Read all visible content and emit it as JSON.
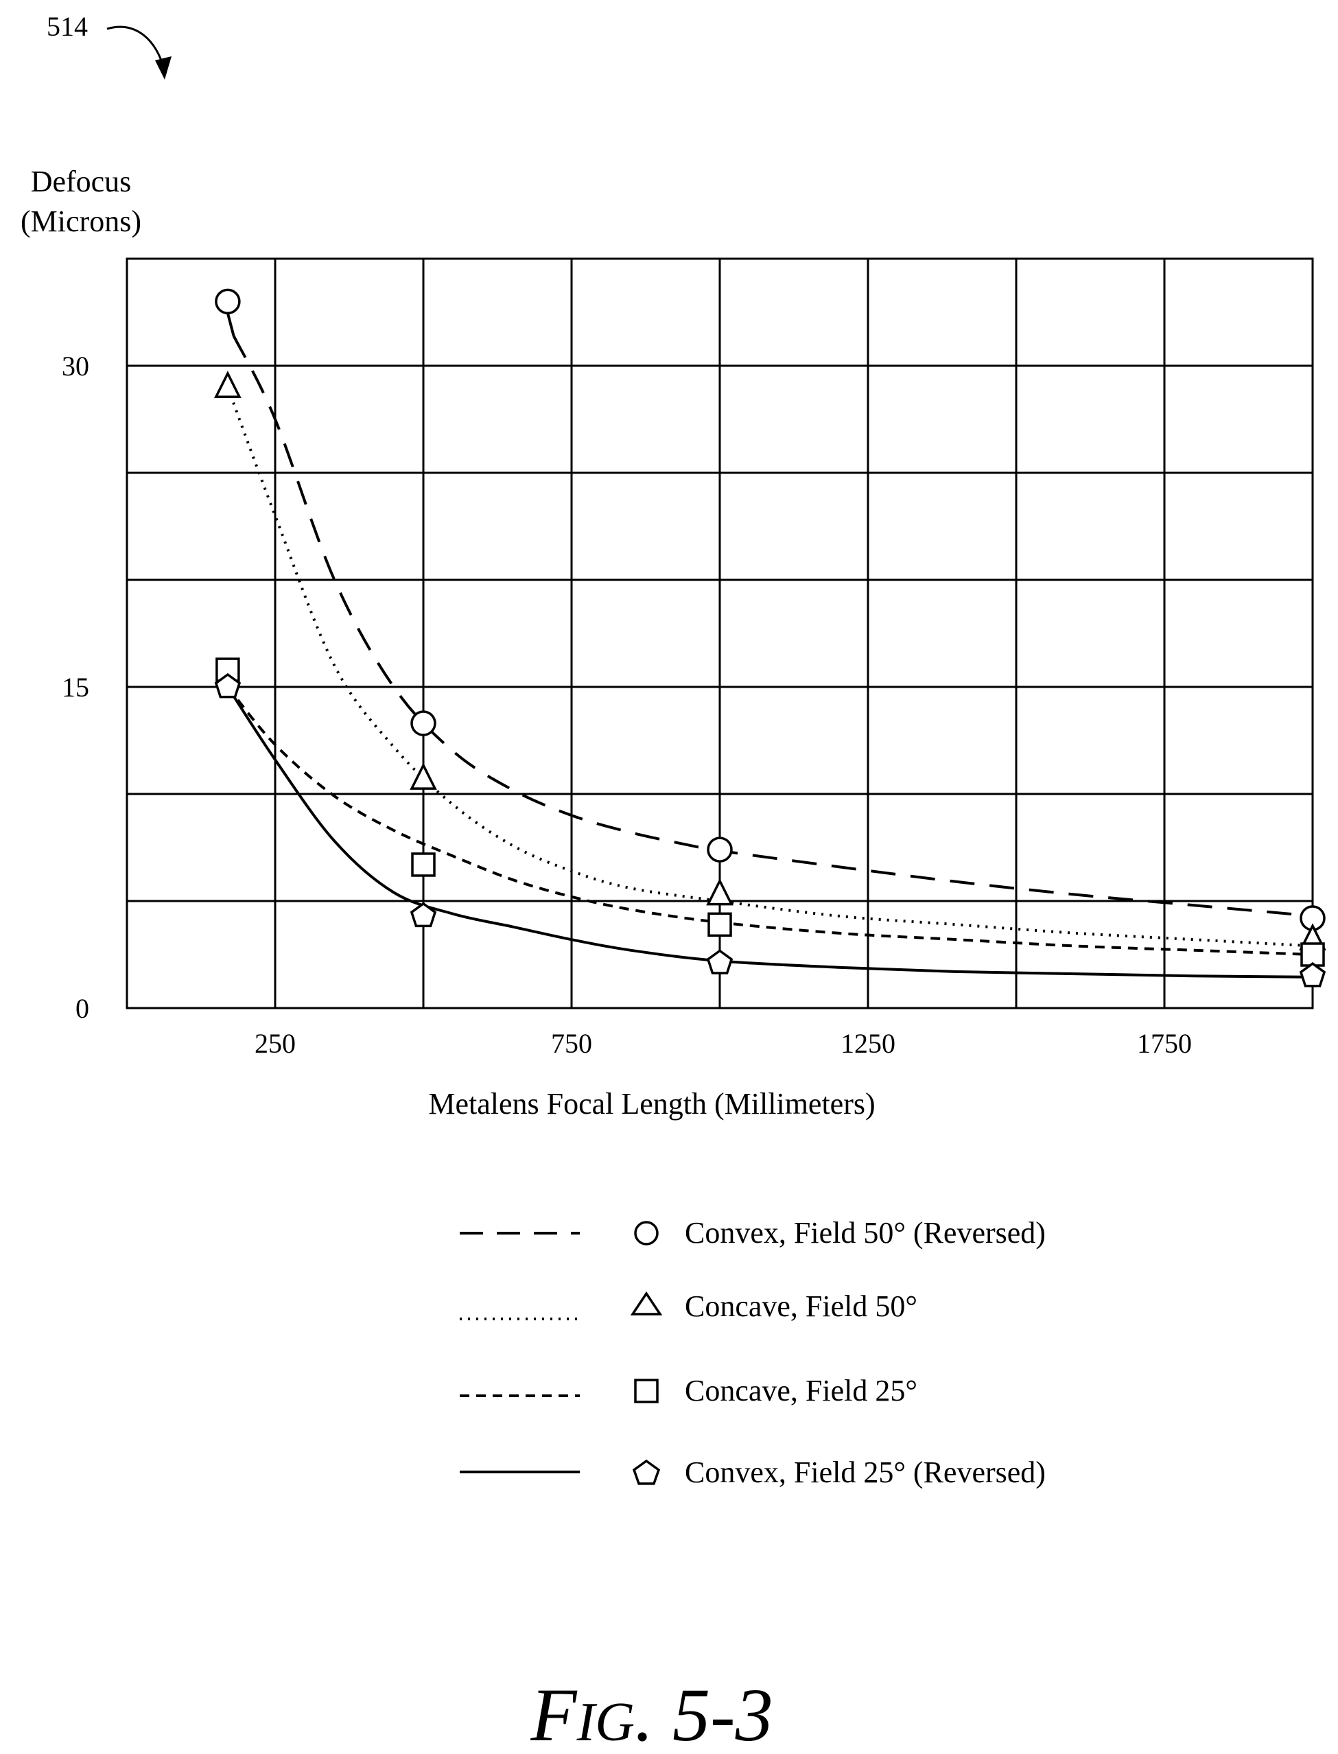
{
  "figure": {
    "ref_number": "514",
    "caption_prefix": "F",
    "caption_small": "IG",
    "caption_suffix": ". 5-3"
  },
  "chart_data": {
    "type": "line",
    "ylabel_line1": "Defocus",
    "ylabel_line2": "(Microns)",
    "xlabel": "Metalens Focal Length (Millimeters)",
    "xlim": [
      0,
      2000
    ],
    "ylim": [
      0,
      35
    ],
    "x_ticks": [
      250,
      750,
      1250,
      1750
    ],
    "x_tick_labels": [
      "250",
      "750",
      "1250",
      "1750"
    ],
    "x_grid": [
      250,
      500,
      750,
      1000,
      1250,
      1500,
      1750
    ],
    "y_ticks": [
      0,
      15,
      30
    ],
    "y_tick_labels": [
      "0",
      "15",
      "30"
    ],
    "y_grid": [
      5,
      10,
      15,
      20,
      25,
      30
    ],
    "grid": true,
    "legend_position": "bottom",
    "series": [
      {
        "name": "Convex, Field 50° (Reversed)",
        "line_style": "long-dash",
        "marker": "circle",
        "points": [
          [
            170,
            33
          ],
          [
            500,
            13.3
          ],
          [
            1000,
            7.4
          ],
          [
            2000,
            4.2
          ]
        ],
        "curve": [
          [
            180,
            31.4
          ],
          [
            250,
            27.5
          ],
          [
            350,
            20.0
          ],
          [
            450,
            15.0
          ],
          [
            550,
            12.0
          ],
          [
            650,
            10.2
          ],
          [
            750,
            9.0
          ],
          [
            850,
            8.2
          ],
          [
            950,
            7.6
          ],
          [
            1000,
            7.35
          ],
          [
            1200,
            6.6
          ],
          [
            1400,
            5.9
          ],
          [
            1600,
            5.3
          ],
          [
            1800,
            4.8
          ],
          [
            2000,
            4.3
          ]
        ]
      },
      {
        "name": "Concave, Field 50°",
        "line_style": "dotted",
        "marker": "triangle",
        "points": [
          [
            170,
            29
          ],
          [
            500,
            10.7
          ],
          [
            1000,
            5.3
          ],
          [
            2000,
            3.2
          ]
        ],
        "curve": [
          [
            170,
            29
          ],
          [
            250,
            23.0
          ],
          [
            350,
            16.0
          ],
          [
            450,
            12.2
          ],
          [
            550,
            9.5
          ],
          [
            650,
            7.6
          ],
          [
            750,
            6.4
          ],
          [
            850,
            5.6
          ],
          [
            1000,
            5.0
          ],
          [
            1200,
            4.3
          ],
          [
            1400,
            3.9
          ],
          [
            1600,
            3.5
          ],
          [
            1800,
            3.2
          ],
          [
            2000,
            2.9
          ]
        ]
      },
      {
        "name": "Concave, Field 25°",
        "line_style": "short-dash",
        "marker": "square",
        "points": [
          [
            170,
            15.8
          ],
          [
            500,
            6.7
          ],
          [
            1000,
            3.9
          ],
          [
            2000,
            2.5
          ]
        ],
        "curve": [
          [
            170,
            15.0
          ],
          [
            250,
            12.3
          ],
          [
            350,
            9.9
          ],
          [
            450,
            8.3
          ],
          [
            550,
            7.1
          ],
          [
            650,
            6.0
          ],
          [
            750,
            5.2
          ],
          [
            850,
            4.6
          ],
          [
            1000,
            4.0
          ],
          [
            1200,
            3.5
          ],
          [
            1400,
            3.2
          ],
          [
            1600,
            2.9
          ],
          [
            1800,
            2.7
          ],
          [
            2000,
            2.5
          ]
        ]
      },
      {
        "name": "Convex, Field 25° (Reversed)",
        "line_style": "solid",
        "marker": "pentagon",
        "points": [
          [
            170,
            15.0
          ],
          [
            500,
            4.3
          ],
          [
            1000,
            2.1
          ],
          [
            2000,
            1.5
          ]
        ],
        "curve": [
          [
            170,
            15.0
          ],
          [
            250,
            11.6
          ],
          [
            350,
            7.8
          ],
          [
            450,
            5.4
          ],
          [
            550,
            4.4
          ],
          [
            650,
            3.8
          ],
          [
            750,
            3.2
          ],
          [
            850,
            2.7
          ],
          [
            1000,
            2.2
          ],
          [
            1200,
            1.9
          ],
          [
            1400,
            1.7
          ],
          [
            1600,
            1.6
          ],
          [
            1800,
            1.5
          ],
          [
            2000,
            1.45
          ]
        ]
      }
    ]
  }
}
